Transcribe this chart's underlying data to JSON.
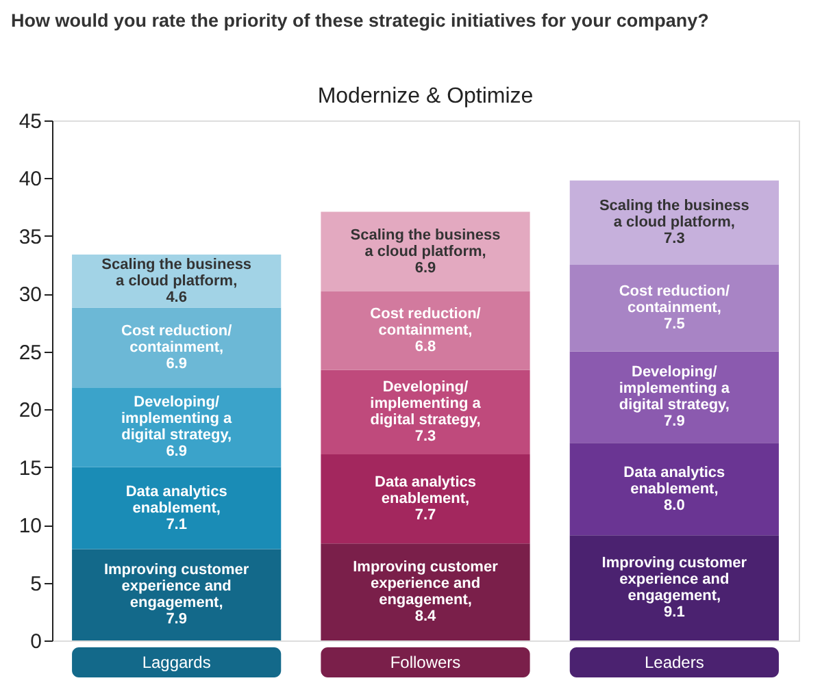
{
  "chart_data": {
    "type": "bar",
    "stacked": true,
    "title": "How would you rate the priority of these strategic initiatives for your company?",
    "subtitle": "Modernize & Optimize",
    "categories": [
      "Laggards",
      "Followers",
      "Leaders"
    ],
    "series": [
      {
        "name": "Improving customer experience and engagement,",
        "values": [
          7.9,
          8.4,
          9.1
        ],
        "value_labels": [
          "7.9",
          "8.4",
          "9.1"
        ],
        "colors": [
          "#13698a",
          "#7a1f4a",
          "#4b2270"
        ]
      },
      {
        "name": "Data analytics enablement,",
        "values": [
          7.1,
          7.7,
          8.0
        ],
        "value_labels": [
          "7.1",
          "7.7",
          "8.0"
        ],
        "colors": [
          "#1a8cb6",
          "#a3275e",
          "#6a3593"
        ]
      },
      {
        "name": "Developing/ implementing a digital strategy,",
        "values": [
          6.9,
          7.3,
          7.9
        ],
        "value_labels": [
          "6.9",
          "7.3",
          "7.9"
        ],
        "colors": [
          "#3ba3ca",
          "#bf4a7c",
          "#8b5aaf"
        ]
      },
      {
        "name": "Cost reduction/ containment,",
        "values": [
          6.9,
          6.8,
          7.5
        ],
        "value_labels": [
          "6.9",
          "6.8",
          "7.5"
        ],
        "colors": [
          "#6cb8d6",
          "#d27a9e",
          "#a884c5"
        ]
      },
      {
        "name": "Scaling the business a cloud platform,",
        "values": [
          4.6,
          6.9,
          7.3
        ],
        "value_labels": [
          "4.6",
          "6.9",
          "7.3"
        ],
        "colors": [
          "#a2d3e6",
          "#e3a9c0",
          "#c6b0dc"
        ]
      }
    ],
    "ylim": [
      0,
      45
    ],
    "yticks": [
      0,
      5,
      10,
      15,
      20,
      25,
      30,
      35,
      40,
      45
    ],
    "grid": false,
    "legend": false
  }
}
